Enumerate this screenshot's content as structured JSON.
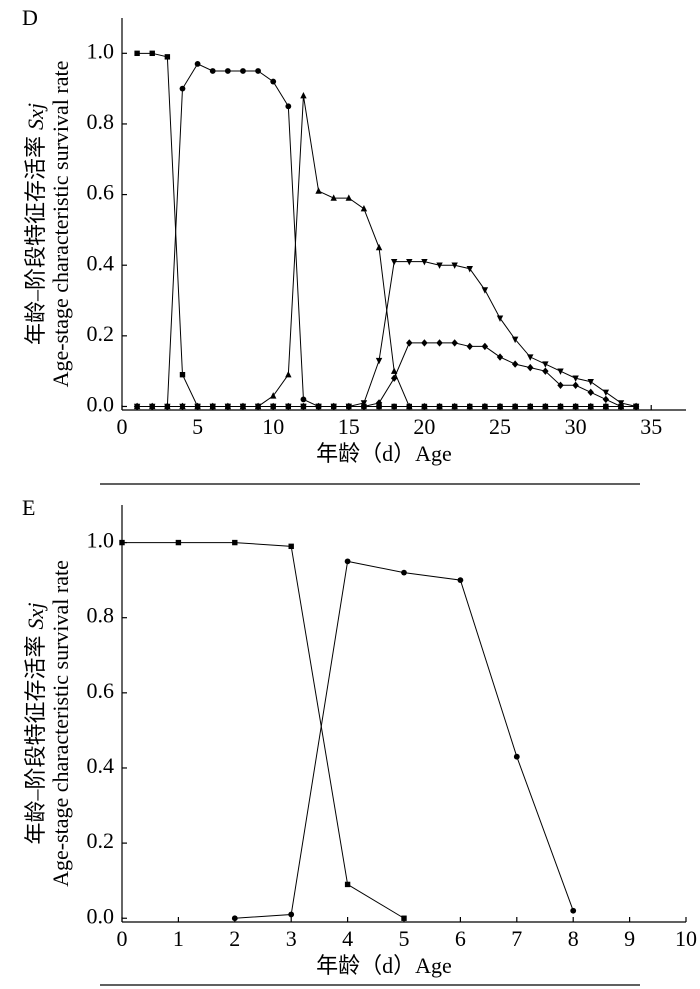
{
  "chart_data": [
    {
      "type": "line",
      "title": "D",
      "ylabel_cn": "年龄–阶段特征存活率",
      "ylabel_symbol": "Sxj",
      "ylabel_en": "Age-stage characteristic survival rate",
      "xlabel": "年龄（d）Age",
      "x": [
        1,
        2,
        3,
        4,
        5,
        6,
        7,
        8,
        9,
        10,
        11,
        12,
        13,
        14,
        15,
        16,
        17,
        18,
        19,
        20,
        21,
        22,
        23,
        24,
        25,
        26,
        27,
        28,
        29,
        30,
        31,
        32,
        33,
        34
      ],
      "series": [
        {
          "marker": "square",
          "color": "#000000",
          "values": [
            1,
            1,
            0.99,
            0.09,
            0,
            0,
            0,
            0,
            0,
            0,
            0,
            0,
            0,
            0,
            0,
            0,
            0,
            0,
            0,
            0,
            0,
            0,
            0,
            0,
            0,
            0,
            0,
            0,
            0,
            0,
            0,
            0,
            0,
            0
          ]
        },
        {
          "marker": "circle",
          "color": "#000000",
          "values": [
            0,
            0,
            0,
            0.9,
            0.97,
            0.95,
            0.95,
            0.95,
            0.95,
            0.92,
            0.85,
            0.02,
            0,
            0,
            0,
            0,
            0,
            0,
            0,
            0,
            0,
            0,
            0,
            0,
            0,
            0,
            0,
            0,
            0,
            0,
            0,
            0,
            0,
            0
          ]
        },
        {
          "marker": "triangle-up",
          "color": "#000000",
          "values": [
            0,
            0,
            0,
            0,
            0,
            0,
            0,
            0,
            0,
            0.03,
            0.09,
            0.88,
            0.61,
            0.59,
            0.59,
            0.56,
            0.45,
            0.1,
            0,
            0,
            0,
            0,
            0,
            0,
            0,
            0,
            0,
            0,
            0,
            0,
            0,
            0,
            0,
            0
          ]
        },
        {
          "marker": "triangle-down",
          "color": "#000000",
          "values": [
            0,
            0,
            0,
            0,
            0,
            0,
            0,
            0,
            0,
            0,
            0,
            0,
            0,
            0,
            0,
            0.01,
            0.13,
            0.41,
            0.41,
            0.41,
            0.4,
            0.4,
            0.39,
            0.33,
            0.25,
            0.19,
            0.14,
            0.12,
            0.1,
            0.08,
            0.07,
            0.04,
            0.01,
            0
          ]
        },
        {
          "marker": "diamond",
          "color": "#000000",
          "values": [
            0,
            0,
            0,
            0,
            0,
            0,
            0,
            0,
            0,
            0,
            0,
            0,
            0,
            0,
            0,
            0,
            0.01,
            0.08,
            0.18,
            0.18,
            0.18,
            0.18,
            0.17,
            0.17,
            0.14,
            0.12,
            0.11,
            0.1,
            0.06,
            0.06,
            0.04,
            0.02,
            0,
            0
          ]
        }
      ],
      "xlim": [
        0,
        37.3
      ],
      "xticks": [
        0,
        5,
        10,
        15,
        20,
        25,
        30,
        35
      ],
      "ylim": [
        -0.01,
        1.1
      ],
      "yticks": [
        {
          "value": 0,
          "label": "0.0"
        },
        0.2,
        0.4,
        0.6,
        0.8,
        {
          "value": 1,
          "label": "1.0"
        }
      ]
    },
    {
      "type": "line",
      "title": "E",
      "ylabel_cn": "年龄–阶段特征存活率",
      "ylabel_symbol": "Sxj",
      "ylabel_en": "Age-stage characteristic survival rate",
      "xlabel": "年龄（d）Age",
      "x": [
        0,
        1,
        2,
        3,
        4,
        5,
        6,
        7,
        8
      ],
      "series": [
        {
          "marker": "square",
          "color": "#000000",
          "values": [
            1,
            1,
            1,
            0.99,
            0.09,
            0,
            null,
            null,
            null
          ]
        },
        {
          "marker": "circle",
          "color": "#000000",
          "values": [
            null,
            null,
            0,
            0.01,
            0.95,
            0.92,
            0.9,
            0.43,
            0.02
          ]
        }
      ],
      "xlim": [
        0,
        10
      ],
      "xticks": [
        0,
        1,
        2,
        3,
        4,
        5,
        6,
        7,
        8,
        9,
        10
      ],
      "ylim": [
        -0.01,
        1.1
      ],
      "yticks": [
        {
          "value": 0,
          "label": "0.0"
        },
        0.2,
        0.4,
        0.6,
        0.8,
        {
          "value": 1,
          "label": "1.0"
        }
      ]
    }
  ]
}
